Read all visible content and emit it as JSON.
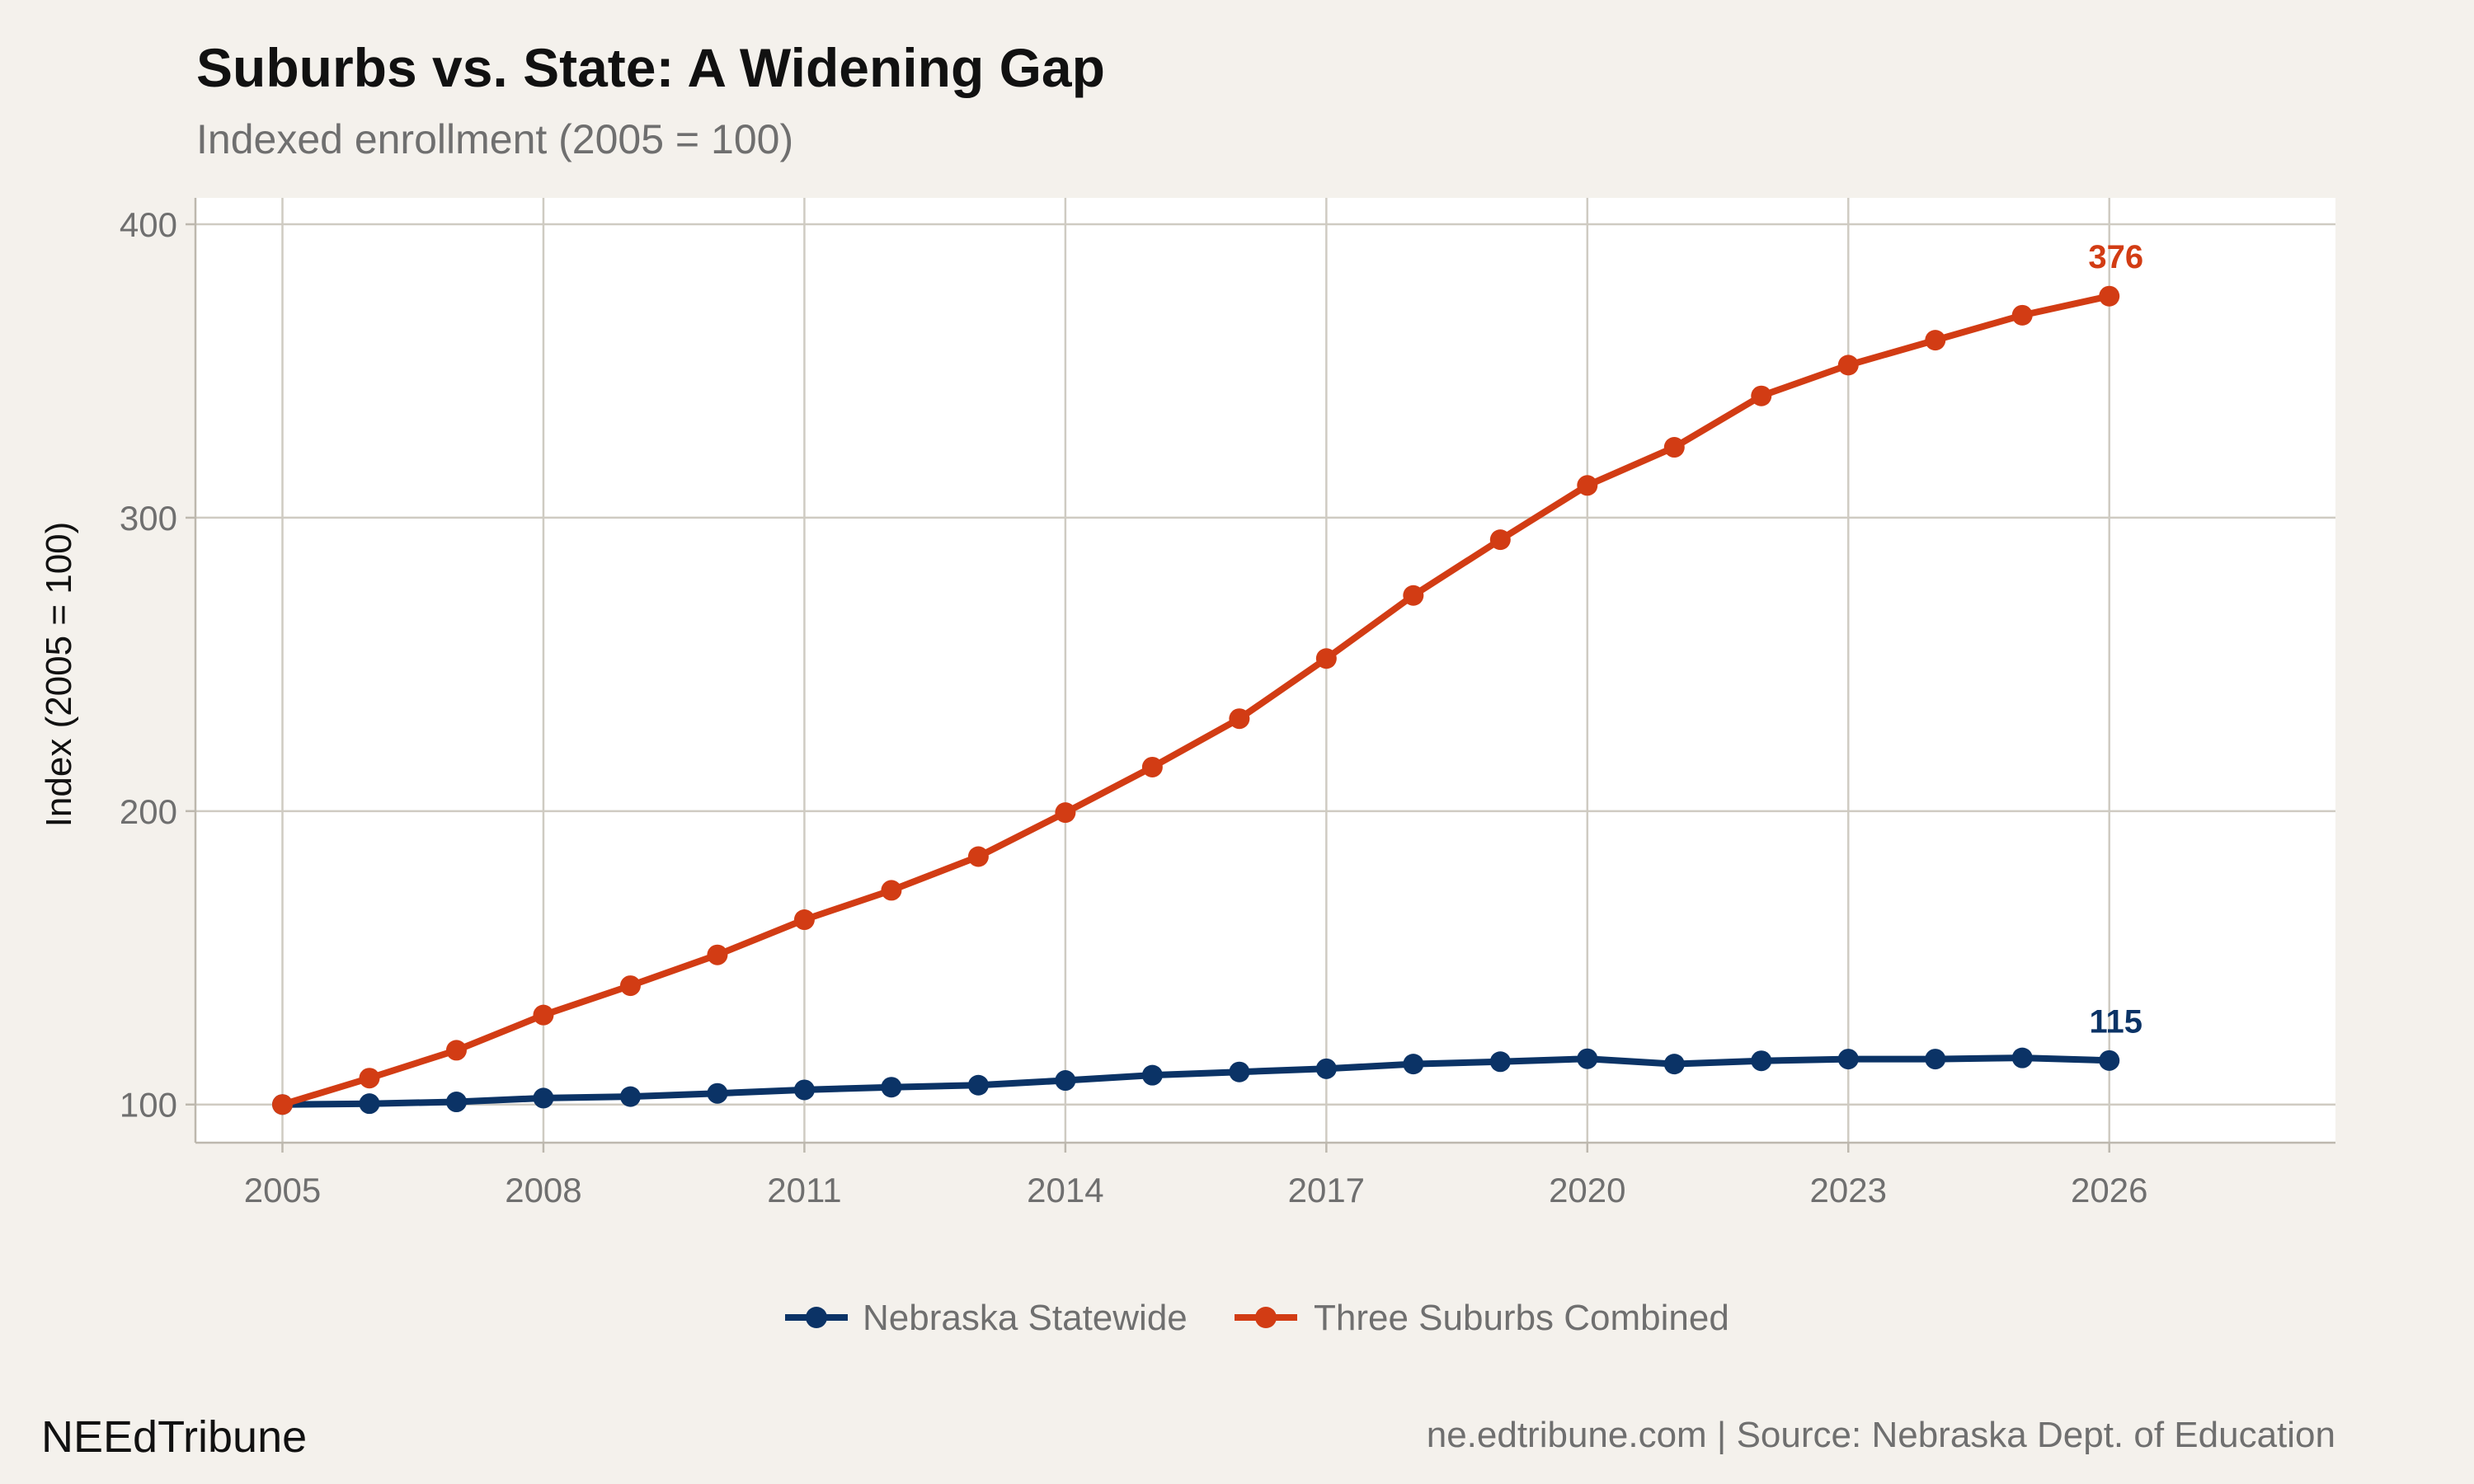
{
  "brand": "NEEdTribune",
  "source": "ne.edtribune.com | Source: Nebraska Dept. of Education",
  "chart_data": {
    "type": "line",
    "title": "Suburbs vs. State: A Widening Gap",
    "subtitle": "Indexed enrollment (2005 = 100)",
    "xlabel": "",
    "ylabel": "Index (2005 = 100)",
    "x": [
      2005,
      2006,
      2007,
      2008,
      2009,
      2010,
      2011,
      2012,
      2013,
      2014,
      2015,
      2016,
      2017,
      2018,
      2019,
      2020,
      2021,
      2022,
      2023,
      2024,
      2025,
      2026
    ],
    "xlim": [
      2004,
      2028.6
    ],
    "ylim": [
      87,
      409
    ],
    "x_ticks": [
      2005,
      2008,
      2011,
      2014,
      2017,
      2020,
      2023,
      2026
    ],
    "y_ticks": [
      100,
      200,
      300,
      400
    ],
    "grid": true,
    "legend_position": "bottom",
    "series": [
      {
        "name": "Nebraska Statewide",
        "color": "#0b3366",
        "values": [
          100,
          100.3,
          100.9,
          102.2,
          102.7,
          103.8,
          105,
          105.9,
          106.6,
          108.2,
          110,
          111.1,
          112.2,
          113.8,
          114.6,
          115.6,
          113.8,
          114.9,
          115.5,
          115.5,
          115.9,
          115
        ],
        "end_label": "115"
      },
      {
        "name": "Three Suburbs Combined",
        "color": "#d23c14",
        "values": [
          100,
          109,
          118.5,
          130.5,
          140.5,
          151,
          163,
          173,
          184.5,
          199.5,
          215,
          231.5,
          252,
          273.5,
          292.5,
          311,
          324,
          341.5,
          352,
          360.5,
          369,
          375.5
        ],
        "end_label": "376"
      }
    ]
  }
}
